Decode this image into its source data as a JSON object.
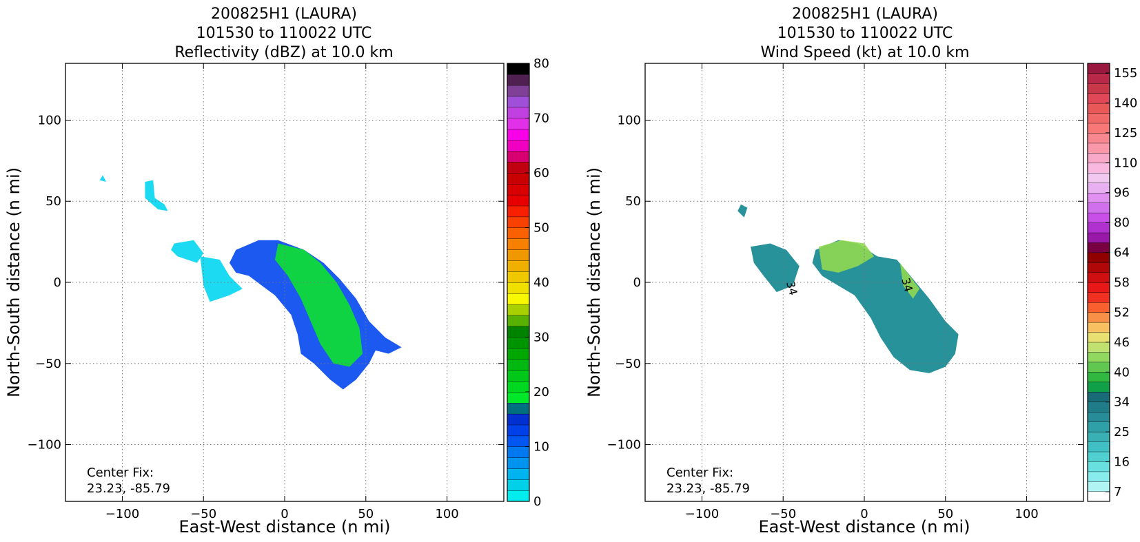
{
  "panels": [
    {
      "title_lines": [
        "200825H1 (LAURA)",
        "101530 to 110022 UTC",
        "Reflectivity (dBZ) at 10.0 km"
      ],
      "xlabel": "East-West distance (n mi)",
      "ylabel": "North-South distance (n mi)",
      "center_fix_label": "Center Fix:",
      "center_fix_value": "23.23, -85.79",
      "colorbar": {
        "tick_labels": [
          "0",
          "10",
          "20",
          "30",
          "40",
          "50",
          "60",
          "70",
          "80"
        ],
        "colors": [
          "#00eded",
          "#00d0e8",
          "#00b4ef",
          "#0094f0",
          "#0078f0",
          "#0058f0",
          "#0040e8",
          "#0030d0",
          "#007080",
          "#00e828",
          "#00d820",
          "#00c818",
          "#00b810",
          "#00a800",
          "#009400",
          "#008400",
          "#58b000",
          "#a8d000",
          "#f8f800",
          "#f0e000",
          "#f0c800",
          "#f0b000",
          "#f09800",
          "#f88000",
          "#f86000",
          "#f84000",
          "#f82000",
          "#e80000",
          "#d80000",
          "#c80000",
          "#c00010",
          "#d80070",
          "#f000c0",
          "#f800e8",
          "#e030e8",
          "#c040e0",
          "#a050d8",
          "#804098",
          "#502050",
          "#000000"
        ]
      }
    },
    {
      "title_lines": [
        "200825H1 (LAURA)",
        "101530 to 110022 UTC",
        "Wind Speed (kt) at 10.0 km"
      ],
      "xlabel": "East-West distance (n mi)",
      "ylabel": "North-South distance (n mi)",
      "center_fix_label": "Center Fix:",
      "center_fix_value": "23.23, -85.79",
      "contour_label": "34",
      "colorbar": {
        "tick_labels": [
          "7",
          "16",
          "25",
          "34",
          "40",
          "46",
          "52",
          "58",
          "64",
          "80",
          "96",
          "110",
          "125",
          "140",
          "155"
        ],
        "colors": [
          "#ffffff",
          "#b0f4f4",
          "#88ecec",
          "#68e0e0",
          "#50d0d0",
          "#40c0c4",
          "#38b0b4",
          "#30a0a8",
          "#288c98",
          "#207c88",
          "#186c78",
          "#10a048",
          "#30b840",
          "#60c850",
          "#90d860",
          "#c0e070",
          "#e8e070",
          "#f8c060",
          "#f89048",
          "#f86030",
          "#f03020",
          "#e81818",
          "#d01010",
          "#b00808",
          "#900000",
          "#780040",
          "#9818a8",
          "#b030d0",
          "#c850e8",
          "#d070ec",
          "#e090f0",
          "#e8b0f0",
          "#f0c8f0",
          "#f8b8e0",
          "#f8a8c8",
          "#f898a8",
          "#f88890",
          "#f87878",
          "#f06868",
          "#e85858",
          "#e04858",
          "#c83848",
          "#b82848",
          "#981840"
        ]
      }
    }
  ],
  "chart_data": [
    {
      "type": "heatmap",
      "title": "200825H1 (LAURA) 101530 to 110022 UTC Reflectivity (dBZ) at 10.0 km",
      "xlabel": "East-West distance (n mi)",
      "ylabel": "North-South distance (n mi)",
      "xlim": [
        -135,
        135
      ],
      "ylim": [
        -135,
        135
      ],
      "x_ticks": [
        -100,
        -50,
        0,
        50,
        100
      ],
      "y_ticks": [
        -100,
        -50,
        0,
        50,
        100
      ],
      "grid": true,
      "colorbar_range": [
        0,
        80
      ],
      "colorbar_ticks": [
        0,
        10,
        20,
        30,
        40,
        50,
        60,
        70,
        80
      ],
      "echo_regions": [
        {
          "level": "light",
          "outline": [
            [
              -112,
              66
            ],
            [
              -110,
              62
            ],
            [
              -114,
              63
            ]
          ]
        },
        {
          "level": "light",
          "outline": [
            [
              -86,
              62
            ],
            [
              -81,
              63
            ],
            [
              -80,
              52
            ],
            [
              -74,
              48
            ],
            [
              -72,
              44
            ],
            [
              -78,
              45
            ],
            [
              -86,
              52
            ]
          ]
        },
        {
          "level": "light",
          "outline": [
            [
              -68,
              24
            ],
            [
              -56,
              26
            ],
            [
              -50,
              18
            ],
            [
              -54,
              12
            ],
            [
              -66,
              16
            ],
            [
              -70,
              20
            ]
          ]
        },
        {
          "level": "light",
          "outline": [
            [
              -52,
              16
            ],
            [
              -40,
              14
            ],
            [
              -34,
              4
            ],
            [
              -26,
              -4
            ],
            [
              -34,
              -8
            ],
            [
              -46,
              -12
            ],
            [
              -50,
              -2
            ]
          ]
        },
        {
          "level": "moderate",
          "outline": [
            [
              -30,
              20
            ],
            [
              -16,
              26
            ],
            [
              -4,
              26
            ],
            [
              12,
              20
            ],
            [
              24,
              12
            ],
            [
              34,
              2
            ],
            [
              44,
              -10
            ],
            [
              52,
              -24
            ],
            [
              62,
              -34
            ],
            [
              72,
              -40
            ],
            [
              64,
              -44
            ],
            [
              56,
              -42
            ],
            [
              52,
              -50
            ],
            [
              44,
              -60
            ],
            [
              36,
              -66
            ],
            [
              28,
              -60
            ],
            [
              18,
              -50
            ],
            [
              10,
              -44
            ],
            [
              8,
              -32
            ],
            [
              4,
              -20
            ],
            [
              -6,
              -8
            ],
            [
              -14,
              -2
            ],
            [
              -22,
              4
            ],
            [
              -30,
              6
            ],
            [
              -34,
              12
            ]
          ]
        },
        {
          "level": "strong",
          "outline": [
            [
              -4,
              24
            ],
            [
              12,
              20
            ],
            [
              22,
              12
            ],
            [
              32,
              0
            ],
            [
              40,
              -14
            ],
            [
              46,
              -28
            ],
            [
              48,
              -44
            ],
            [
              40,
              -52
            ],
            [
              30,
              -50
            ],
            [
              22,
              -38
            ],
            [
              16,
              -24
            ],
            [
              10,
              -10
            ],
            [
              2,
              4
            ],
            [
              -6,
              14
            ]
          ]
        }
      ]
    },
    {
      "type": "heatmap",
      "title": "200825H1 (LAURA) 101530 to 110022 UTC Wind Speed (kt) at 10.0 km",
      "xlabel": "East-West distance (n mi)",
      "ylabel": "North-South distance (n mi)",
      "xlim": [
        -135,
        135
      ],
      "ylim": [
        -135,
        135
      ],
      "x_ticks": [
        -100,
        -50,
        0,
        50,
        100
      ],
      "y_ticks": [
        -100,
        -50,
        0,
        50,
        100
      ],
      "grid": true,
      "colorbar_range": [
        7,
        160
      ],
      "colorbar_ticks": [
        7,
        16,
        25,
        34,
        40,
        46,
        52,
        58,
        64,
        80,
        96,
        110,
        125,
        140,
        155
      ],
      "contours": [
        {
          "value": 34,
          "label": "34"
        }
      ],
      "wind_regions": [
        {
          "level": "moderate",
          "outline": [
            [
              -76,
              48
            ],
            [
              -72,
              46
            ],
            [
              -74,
              40
            ],
            [
              -78,
              44
            ]
          ]
        },
        {
          "level": "moderate",
          "outline": [
            [
              -70,
              22
            ],
            [
              -58,
              24
            ],
            [
              -48,
              20
            ],
            [
              -40,
              10
            ],
            [
              -44,
              -2
            ],
            [
              -54,
              -6
            ],
            [
              -62,
              4
            ],
            [
              -68,
              12
            ]
          ]
        },
        {
          "level": "moderate",
          "outline": [
            [
              -30,
              20
            ],
            [
              -16,
              26
            ],
            [
              -4,
              24
            ],
            [
              8,
              16
            ],
            [
              20,
              14
            ],
            [
              30,
              2
            ],
            [
              40,
              -10
            ],
            [
              50,
              -24
            ],
            [
              58,
              -32
            ],
            [
              56,
              -44
            ],
            [
              50,
              -52
            ],
            [
              40,
              -56
            ],
            [
              28,
              -54
            ],
            [
              18,
              -46
            ],
            [
              10,
              -34
            ],
            [
              4,
              -22
            ],
            [
              -6,
              -8
            ],
            [
              -16,
              -2
            ],
            [
              -26,
              4
            ],
            [
              -32,
              12
            ]
          ]
        },
        {
          "level": "high",
          "outline": [
            [
              -28,
              22
            ],
            [
              -14,
              26
            ],
            [
              0,
              24
            ],
            [
              6,
              16
            ],
            [
              -4,
              10
            ],
            [
              -16,
              6
            ],
            [
              -26,
              8
            ]
          ]
        },
        {
          "level": "high",
          "outline": [
            [
              22,
              12
            ],
            [
              28,
              4
            ],
            [
              34,
              -4
            ],
            [
              30,
              -10
            ],
            [
              24,
              -2
            ]
          ]
        }
      ]
    }
  ]
}
